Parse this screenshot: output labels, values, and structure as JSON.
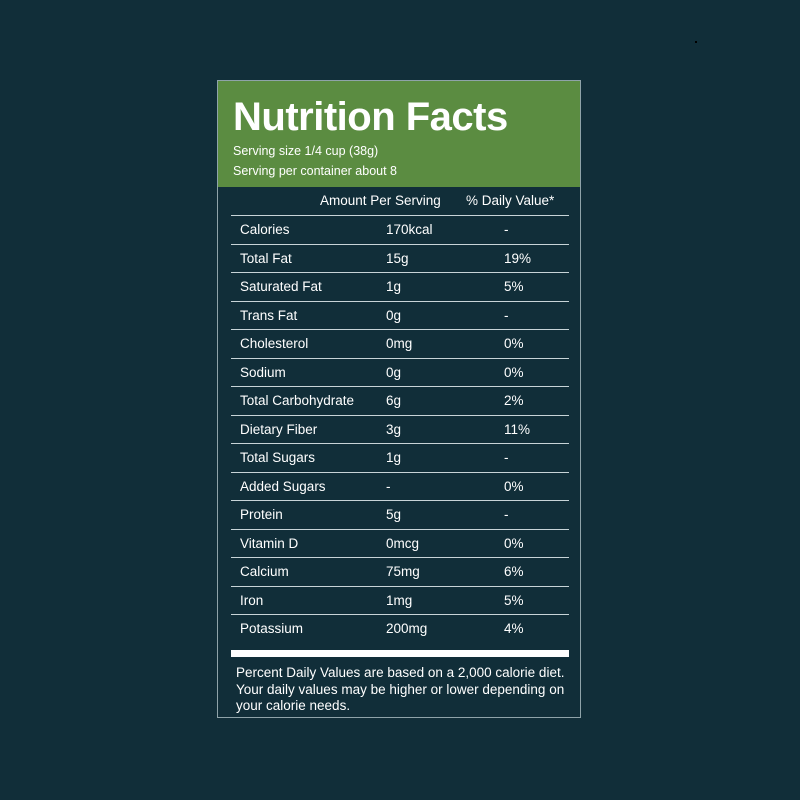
{
  "title": "Nutrition Facts",
  "serving_size": "Serving size 1/4 cup (38g)",
  "servings_per_container": "Serving per container about 8",
  "columns": {
    "amount": "Amount Per Serving",
    "daily": "% Daily Value*"
  },
  "rows": [
    {
      "name": "Calories",
      "amount": "170kcal",
      "daily": "-"
    },
    {
      "name": "Total Fat",
      "amount": "15g",
      "daily": "19%"
    },
    {
      "name": "Saturated Fat",
      "amount": "1g",
      "daily": "5%"
    },
    {
      "name": "Trans Fat",
      "amount": "0g",
      "daily": "-"
    },
    {
      "name": "Cholesterol",
      "amount": "0mg",
      "daily": "0%"
    },
    {
      "name": "Sodium",
      "amount": "0g",
      "daily": "0%"
    },
    {
      "name": "Total Carbohydrate",
      "amount": "6g",
      "daily": "2%"
    },
    {
      "name": "Dietary Fiber",
      "amount": "3g",
      "daily": "11%"
    },
    {
      "name": "Total Sugars",
      "amount": "1g",
      "daily": "-"
    },
    {
      "name": "Added Sugars",
      "amount": "-",
      "daily": "0%"
    },
    {
      "name": "Protein",
      "amount": "5g",
      "daily": "-"
    },
    {
      "name": "Vitamin D",
      "amount": "0mcg",
      "daily": "0%"
    },
    {
      "name": "Calcium",
      "amount": "75mg",
      "daily": "6%"
    },
    {
      "name": "Iron",
      "amount": "1mg",
      "daily": "5%"
    },
    {
      "name": "Potassium",
      "amount": "200mg",
      "daily": "4%"
    }
  ],
  "footnote": "Percent Daily Values are based on a 2,000 calorie diet. Your daily values may be higher or lower depending on your calorie needs.",
  "colors": {
    "background": "#112e39",
    "header": "#5b8c41",
    "text": "#ffffff"
  }
}
